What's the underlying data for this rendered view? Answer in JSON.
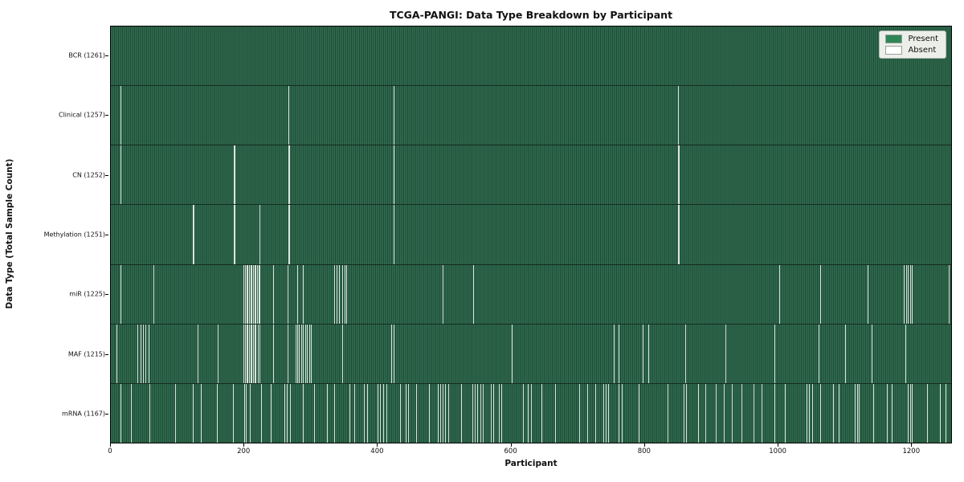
{
  "chart_data": {
    "type": "heatmap",
    "title": "TCGA-PANGI: Data Type Breakdown by Participant",
    "xlabel": "Participant",
    "ylabel": "Data Type (Total Sample Count)",
    "x_ticks": [
      0,
      200,
      400,
      600,
      800,
      1000,
      1200
    ],
    "x_range": [
      0,
      1261
    ],
    "n_participants": 1261,
    "grid": false,
    "legend_position": "upper right",
    "legend": [
      {
        "label": "Present",
        "color": "#2e8657"
      },
      {
        "label": "Absent",
        "color": "#ffffff"
      }
    ],
    "colors": {
      "bar_fill": "#2f6c4e",
      "bar_edge": "#204b37",
      "absent": "#f5f5f5",
      "row_separator": "#152b1f"
    },
    "rows": [
      {
        "label": "BCR (1261)",
        "data_type": "BCR",
        "present_count": 1261,
        "absent_indices": []
      },
      {
        "label": "Clinical (1257)",
        "data_type": "Clinical",
        "present_count": 1257,
        "absent_indices": [
          15,
          266,
          423,
          850
        ]
      },
      {
        "label": "CN (1252)",
        "data_type": "CN",
        "present_count": 1252,
        "absent_indices": [
          15,
          184,
          185,
          266,
          267,
          423,
          424,
          850,
          851
        ]
      },
      {
        "label": "Methylation (1251)",
        "data_type": "Methylation",
        "present_count": 1251,
        "absent_indices": [
          123,
          124,
          184,
          185,
          223,
          266,
          267,
          423,
          850,
          851
        ]
      },
      {
        "label": "miR (1225)",
        "data_type": "miR",
        "present_count": 1225,
        "absent_indices": [
          15,
          64,
          199,
          201,
          203,
          205,
          207,
          209,
          211,
          213,
          215,
          217,
          219,
          221,
          223,
          243,
          265,
          279,
          287,
          334,
          338,
          342,
          346,
          350,
          353,
          497,
          543,
          1001,
          1062,
          1134,
          1188,
          1191,
          1194,
          1197,
          1200,
          1255
        ]
      },
      {
        "label": "MAF (1215)",
        "data_type": "MAF",
        "present_count": 1215,
        "absent_indices": [
          8,
          40,
          44,
          48,
          52,
          56,
          130,
          160,
          199,
          201,
          203,
          205,
          207,
          209,
          211,
          213,
          215,
          217,
          220,
          222,
          243,
          265,
          277,
          279,
          282,
          285,
          288,
          291,
          294,
          297,
          300,
          346,
          420,
          424,
          601,
          753,
          761,
          797,
          805,
          860,
          920,
          994,
          1060,
          1100,
          1140,
          1190
        ]
      },
      {
        "label": "mRNA (1167)",
        "data_type": "mRNA",
        "present_count": 1167,
        "absent_indices": [
          14,
          30,
          58,
          96,
          123,
          135,
          159,
          183,
          200,
          202,
          208,
          225,
          240,
          260,
          264,
          268,
          288,
          304,
          324,
          335,
          357,
          364,
          379,
          384,
          400,
          403,
          408,
          413,
          433,
          441,
          445,
          457,
          477,
          490,
          493,
          497,
          500,
          505,
          525,
          541,
          545,
          549,
          553,
          557,
          569,
          573,
          581,
          585,
          617,
          625,
          629,
          645,
          665,
          701,
          713,
          725,
          737,
          741,
          745,
          761,
          765,
          790,
          834,
          858,
          862,
          880,
          890,
          906,
          918,
          930,
          945,
          962,
          975,
          994,
          1010,
          1042,
          1046,
          1050,
          1062,
          1082,
          1090,
          1114,
          1118,
          1120,
          1142,
          1162,
          1170,
          1194,
          1197,
          1200,
          1222,
          1242,
          1250,
          1258
        ]
      }
    ]
  }
}
